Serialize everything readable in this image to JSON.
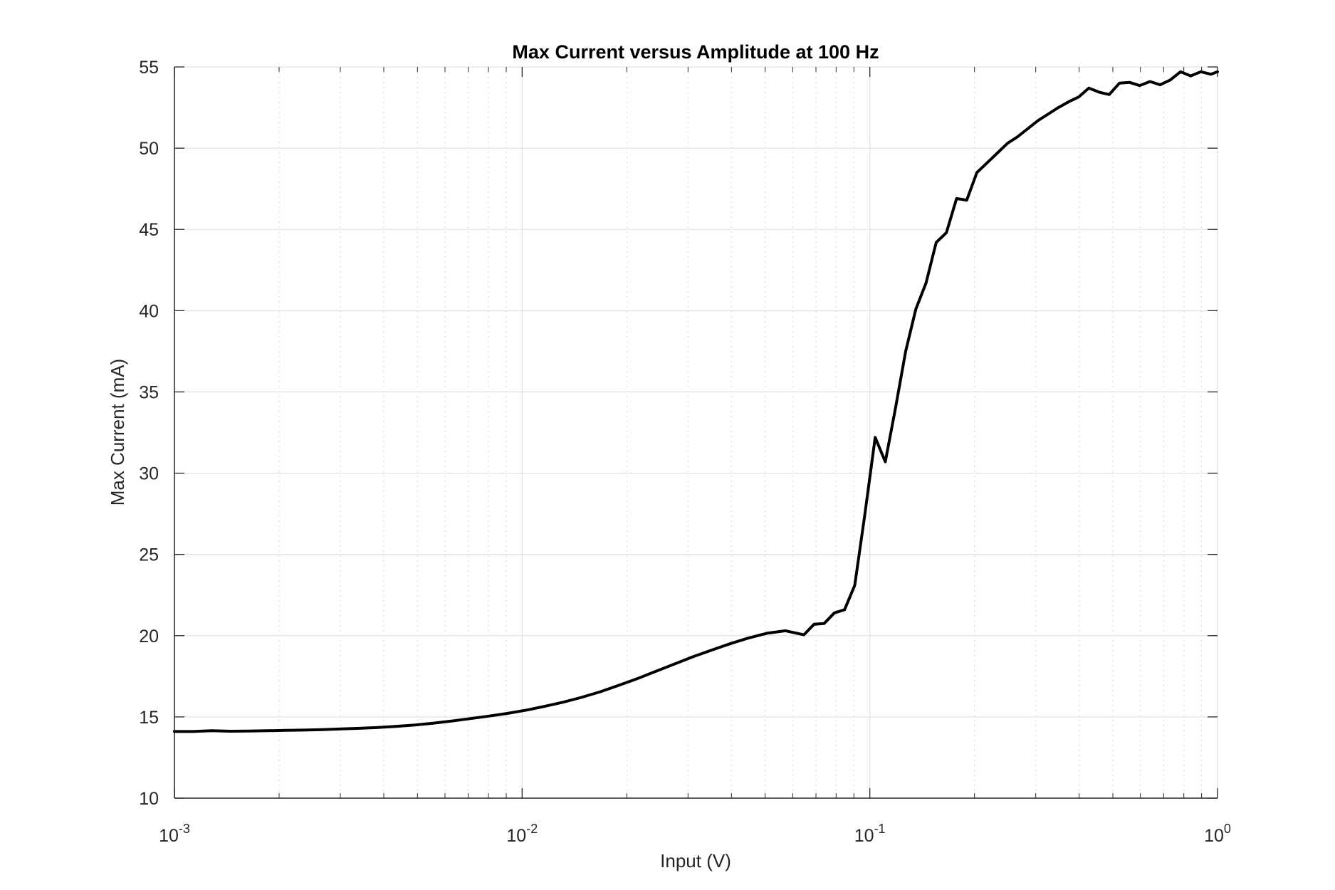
{
  "chart_data": {
    "type": "line",
    "title": "Max Current versus Amplitude at 100 Hz",
    "xlabel": "Input (V)",
    "ylabel": "Max Current (mA)",
    "x_scale": "log",
    "xlim": [
      0.001,
      1
    ],
    "ylim": [
      10,
      55
    ],
    "grid": true,
    "x_ticks": [
      {
        "value": 0.001,
        "base": "10",
        "exp": "-3"
      },
      {
        "value": 0.01,
        "base": "10",
        "exp": "-2"
      },
      {
        "value": 0.1,
        "base": "10",
        "exp": "-1"
      },
      {
        "value": 1,
        "base": "10",
        "exp": "0"
      }
    ],
    "y_ticks": [
      10,
      15,
      20,
      25,
      30,
      35,
      40,
      45,
      50,
      55
    ],
    "line_color": "#000000",
    "series": [
      {
        "x": [
          0.001,
          0.00113,
          0.00128,
          0.00145,
          0.00163,
          0.00185,
          0.00209,
          0.00236,
          0.00267,
          0.00302,
          0.00341,
          0.00385,
          0.00436,
          0.00492,
          0.00557,
          0.00629,
          0.00711,
          0.00804,
          0.00909,
          0.0103,
          0.0116,
          0.0131,
          0.0148,
          0.0168,
          0.019,
          0.0214,
          0.0242,
          0.0274,
          0.031,
          0.035,
          0.0396,
          0.0447,
          0.0506,
          0.0572,
          0.0646,
          0.0691,
          0.0739,
          0.0791,
          0.0846,
          0.0905,
          0.0968,
          0.1036,
          0.1108,
          0.1185,
          0.1268,
          0.1356,
          0.1451,
          0.1552,
          0.166,
          0.1776,
          0.19,
          0.2032,
          0.2174,
          0.2326,
          0.2488,
          0.2661,
          0.2847,
          0.3046,
          0.3258,
          0.3485,
          0.3728,
          0.3988,
          0.4266,
          0.4564,
          0.4882,
          0.5222,
          0.5587,
          0.5976,
          0.6393,
          0.6839,
          0.7316,
          0.7826,
          0.8372,
          0.8956,
          0.958,
          1.0
        ],
        "y": [
          14.1,
          14.1,
          14.15,
          14.12,
          14.13,
          14.15,
          14.17,
          14.19,
          14.22,
          14.26,
          14.3,
          14.35,
          14.42,
          14.5,
          14.62,
          14.75,
          14.9,
          15.05,
          15.22,
          15.42,
          15.65,
          15.9,
          16.2,
          16.55,
          16.95,
          17.35,
          17.8,
          18.25,
          18.7,
          19.1,
          19.5,
          19.85,
          20.15,
          20.3,
          20.05,
          20.7,
          20.75,
          21.4,
          21.6,
          23.1,
          27.5,
          32.2,
          30.7,
          34.0,
          37.5,
          40.1,
          41.7,
          44.2,
          44.8,
          46.9,
          46.8,
          48.5,
          49.1,
          49.7,
          50.3,
          50.7,
          51.2,
          51.7,
          52.1,
          52.5,
          52.85,
          53.15,
          53.7,
          53.45,
          53.3,
          54.0,
          54.05,
          53.85,
          54.1,
          53.9,
          54.2,
          54.7,
          54.45,
          54.7,
          54.55,
          54.7
        ]
      }
    ]
  }
}
